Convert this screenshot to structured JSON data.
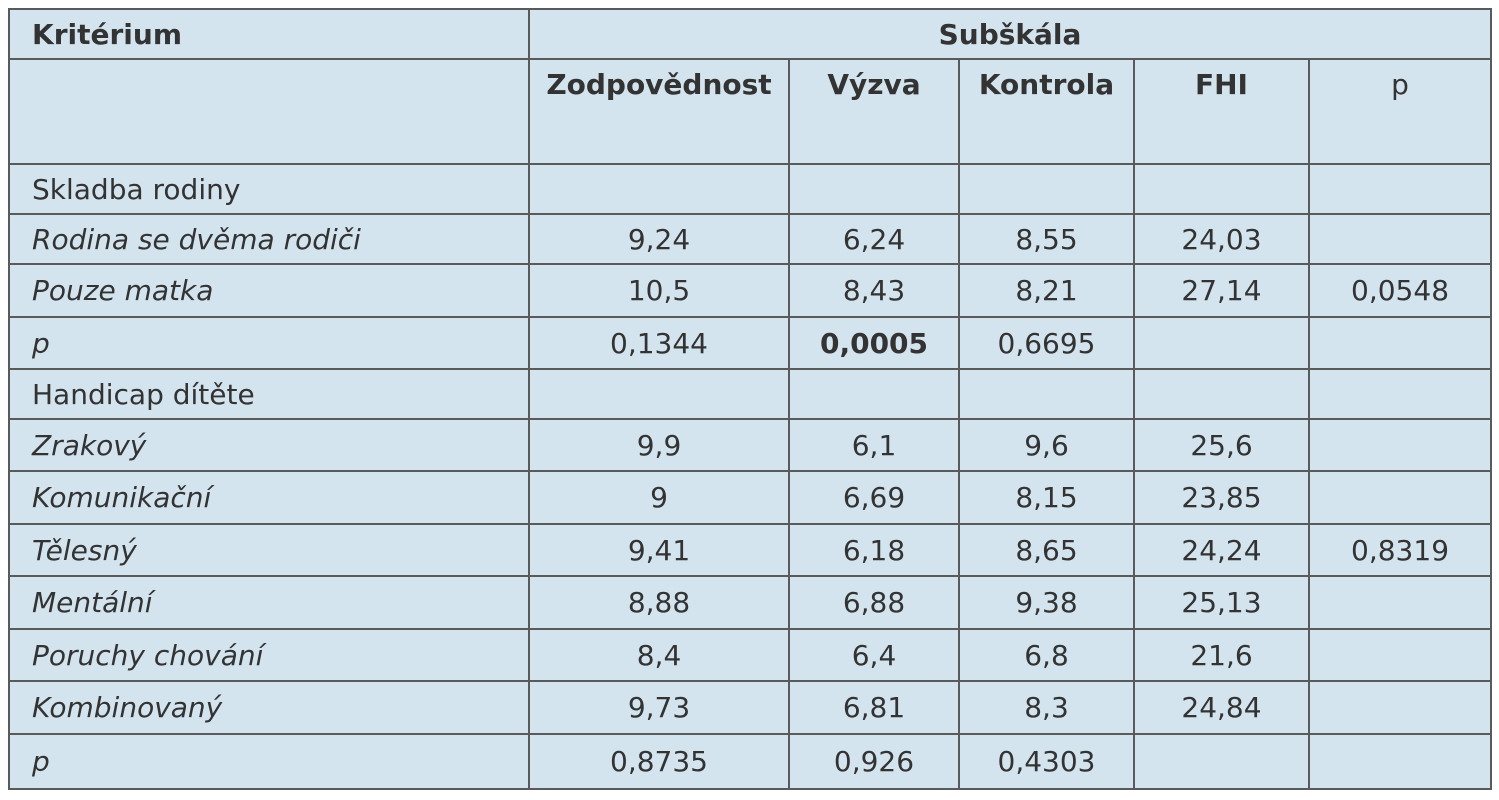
{
  "table": {
    "header": {
      "criterion": "Kritérium",
      "subscale": "Subškála"
    },
    "columns": [
      "Zodpovědnost",
      "Výzva",
      "Kontrola",
      "FHI",
      "p"
    ],
    "rows": [
      {
        "label": "Skladba rodiny"
      },
      {
        "label": "Rodina se dvěma rodiči",
        "cells": [
          "9,24",
          "6,24",
          "8,55",
          "24,03"
        ]
      },
      {
        "label": "Pouze matka",
        "cells": [
          "10,5",
          "8,43",
          "8,21",
          "27,14",
          "0,0548"
        ]
      },
      {
        "label": "p",
        "cells": [
          "0,1344",
          "0,0005",
          "0,6695"
        ]
      },
      {
        "label": "Handicap dítěte"
      },
      {
        "label": "Zrakový",
        "cells": [
          "9,9",
          "6,1",
          "9,6",
          "25,6"
        ]
      },
      {
        "label": "Komunikační",
        "cells": [
          "9",
          "6,69",
          "8,15",
          "23,85"
        ]
      },
      {
        "label": "Tělesný",
        "cells": [
          "9,41",
          "6,18",
          "8,65",
          "24,24",
          "0,8319"
        ]
      },
      {
        "label": "Mentální",
        "cells": [
          "8,88",
          "6,88",
          "9,38",
          "25,13"
        ]
      },
      {
        "label": "Poruchy chování",
        "cells": [
          "8,4",
          "6,4",
          "6,8",
          "21,6"
        ]
      },
      {
        "label": "Kombinovaný",
        "cells": [
          "9,73",
          "6,81",
          "8,3",
          "24,84"
        ]
      },
      {
        "label": "p",
        "cells": [
          "0,8735",
          "0,926",
          "0,4303"
        ]
      }
    ]
  }
}
